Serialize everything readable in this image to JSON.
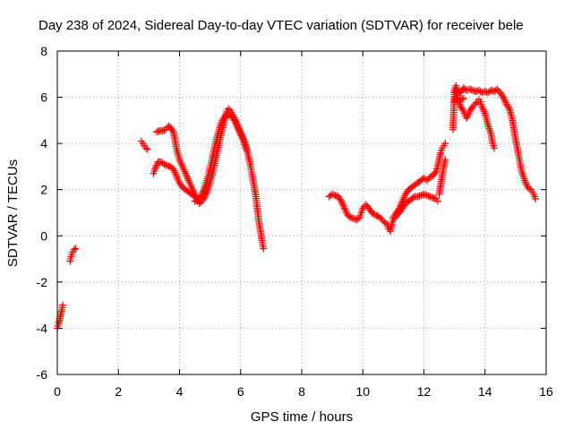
{
  "chart_data": {
    "type": "scatter",
    "title": "Day 238 of 2024, Sidereal Day-to-day VTEC variation (SDTVAR) for receiver bele",
    "xlabel": "GPS time / hours",
    "ylabel": "SDTVAR / TECUs",
    "xlim": [
      0,
      16
    ],
    "ylim": [
      -6,
      8
    ],
    "xticks": [
      0,
      2,
      4,
      6,
      8,
      10,
      12,
      14,
      16
    ],
    "yticks": [
      -6,
      -4,
      -2,
      0,
      2,
      4,
      6,
      8
    ],
    "grid": true,
    "marker": "+",
    "color": "#ff0000",
    "series": [
      {
        "name": "SDTVAR",
        "segments": [
          [
            [
              0.0,
              -4.0
            ],
            [
              0.05,
              -3.8
            ],
            [
              0.1,
              -3.5
            ],
            [
              0.15,
              -3.2
            ],
            [
              0.18,
              -3.0
            ]
          ],
          [
            [
              0.42,
              -1.1
            ],
            [
              0.45,
              -0.9
            ],
            [
              0.5,
              -0.7
            ],
            [
              0.55,
              -0.6
            ],
            [
              0.6,
              -0.55
            ]
          ],
          [
            [
              2.75,
              4.1
            ],
            [
              2.8,
              4.0
            ],
            [
              2.85,
              3.9
            ],
            [
              2.9,
              3.8
            ],
            [
              2.95,
              3.75
            ]
          ],
          [
            [
              3.15,
              2.7
            ],
            [
              3.2,
              2.9
            ],
            [
              3.3,
              3.2
            ],
            [
              3.4,
              3.2
            ],
            [
              3.5,
              3.1
            ],
            [
              3.6,
              3.05
            ],
            [
              3.7,
              3.0
            ],
            [
              3.8,
              2.9
            ],
            [
              3.9,
              2.6
            ],
            [
              4.0,
              2.3
            ],
            [
              4.1,
              2.1
            ],
            [
              4.2,
              2.0
            ],
            [
              4.3,
              1.9
            ],
            [
              4.4,
              1.8
            ],
            [
              4.5,
              1.7
            ],
            [
              4.6,
              1.6
            ],
            [
              4.7,
              1.6
            ]
          ],
          [
            [
              3.25,
              4.5
            ],
            [
              3.35,
              4.55
            ],
            [
              3.45,
              4.55
            ],
            [
              3.55,
              4.6
            ],
            [
              3.6,
              4.7
            ],
            [
              3.65,
              4.75
            ],
            [
              3.7,
              4.7
            ],
            [
              3.8,
              4.5
            ],
            [
              3.85,
              4.2
            ],
            [
              3.9,
              3.8
            ],
            [
              4.0,
              3.3
            ],
            [
              4.1,
              3.0
            ],
            [
              4.2,
              2.7
            ],
            [
              4.3,
              2.4
            ],
            [
              4.4,
              2.1
            ],
            [
              4.5,
              1.8
            ],
            [
              4.6,
              1.5
            ],
            [
              4.65,
              1.4
            ],
            [
              4.7,
              1.45
            ],
            [
              4.8,
              1.6
            ],
            [
              4.9,
              1.9
            ],
            [
              5.0,
              2.3
            ],
            [
              5.1,
              2.8
            ],
            [
              5.2,
              3.4
            ],
            [
              5.3,
              4.0
            ],
            [
              5.4,
              4.6
            ],
            [
              5.5,
              5.1
            ],
            [
              5.55,
              5.4
            ],
            [
              5.6,
              5.5
            ],
            [
              5.65,
              5.45
            ],
            [
              5.7,
              5.35
            ],
            [
              5.8,
              5.1
            ],
            [
              5.9,
              4.8
            ],
            [
              6.0,
              4.5
            ],
            [
              6.1,
              4.2
            ],
            [
              6.2,
              3.8
            ],
            [
              6.3,
              3.2
            ],
            [
              6.4,
              2.5
            ],
            [
              6.5,
              1.7
            ],
            [
              6.6,
              0.6
            ],
            [
              6.7,
              -0.2
            ],
            [
              6.75,
              -0.55
            ]
          ],
          [
            [
              4.5,
              1.5
            ],
            [
              4.6,
              1.55
            ],
            [
              4.7,
              1.7
            ],
            [
              4.8,
              2.0
            ],
            [
              4.9,
              2.4
            ],
            [
              5.0,
              2.9
            ],
            [
              5.1,
              3.5
            ],
            [
              5.2,
              4.1
            ],
            [
              5.3,
              4.6
            ],
            [
              5.4,
              5.0
            ],
            [
              5.5,
              5.2
            ],
            [
              5.6,
              5.25
            ],
            [
              5.7,
              5.2
            ],
            [
              5.8,
              5.0
            ],
            [
              5.9,
              4.7
            ],
            [
              6.0,
              4.4
            ],
            [
              6.1,
              4.1
            ],
            [
              6.2,
              3.7
            ]
          ],
          [
            [
              8.9,
              1.7
            ],
            [
              9.0,
              1.8
            ],
            [
              9.1,
              1.75
            ],
            [
              9.2,
              1.7
            ],
            [
              9.3,
              1.5
            ],
            [
              9.4,
              1.2
            ],
            [
              9.5,
              0.9
            ],
            [
              9.6,
              0.8
            ],
            [
              9.7,
              0.75
            ],
            [
              9.8,
              0.7
            ],
            [
              9.9,
              0.8
            ],
            [
              9.95,
              1.0
            ],
            [
              10.0,
              1.2
            ],
            [
              10.1,
              1.35
            ],
            [
              10.2,
              1.2
            ],
            [
              10.3,
              1.0
            ],
            [
              10.4,
              0.9
            ],
            [
              10.5,
              0.85
            ],
            [
              10.6,
              0.75
            ],
            [
              10.7,
              0.6
            ],
            [
              10.8,
              0.5
            ],
            [
              10.85,
              0.3
            ],
            [
              10.9,
              0.2
            ],
            [
              10.95,
              0.5
            ],
            [
              11.0,
              0.7
            ],
            [
              11.1,
              0.85
            ],
            [
              11.2,
              1.0
            ],
            [
              11.3,
              1.2
            ],
            [
              11.4,
              1.4
            ],
            [
              11.5,
              1.5
            ],
            [
              11.6,
              1.6
            ],
            [
              11.7,
              1.7
            ],
            [
              11.8,
              1.7
            ],
            [
              11.9,
              1.75
            ],
            [
              12.0,
              1.8
            ],
            [
              12.1,
              1.75
            ],
            [
              12.2,
              1.7
            ],
            [
              12.3,
              1.65
            ],
            [
              12.4,
              1.6
            ],
            [
              12.45,
              1.5
            ]
          ],
          [
            [
              11.0,
              0.8
            ],
            [
              11.1,
              1.0
            ],
            [
              11.2,
              1.2
            ],
            [
              11.3,
              1.5
            ],
            [
              11.4,
              1.8
            ],
            [
              11.5,
              2.0
            ],
            [
              11.6,
              2.1
            ],
            [
              11.7,
              2.2
            ],
            [
              11.8,
              2.3
            ],
            [
              11.9,
              2.4
            ],
            [
              12.0,
              2.5
            ],
            [
              12.1,
              2.4
            ],
            [
              12.2,
              2.55
            ],
            [
              12.3,
              2.6
            ],
            [
              12.4,
              2.8
            ],
            [
              12.45,
              3.0
            ],
            [
              12.5,
              3.3
            ],
            [
              12.55,
              3.6
            ],
            [
              12.6,
              3.8
            ],
            [
              12.65,
              3.9
            ],
            [
              12.7,
              4.0
            ]
          ],
          [
            [
              12.5,
              1.8
            ],
            [
              12.55,
              2.2
            ],
            [
              12.6,
              2.6
            ],
            [
              12.65,
              3.0
            ],
            [
              12.7,
              3.3
            ]
          ],
          [
            [
              12.95,
              4.6
            ],
            [
              12.98,
              5.5
            ],
            [
              13.0,
              6.3
            ],
            [
              13.05,
              6.5
            ],
            [
              13.1,
              6.0
            ],
            [
              13.2,
              5.6
            ],
            [
              13.3,
              5.4
            ],
            [
              13.35,
              5.2
            ],
            [
              13.4,
              5.1
            ],
            [
              13.5,
              5.4
            ],
            [
              13.6,
              5.6
            ],
            [
              13.7,
              5.75
            ],
            [
              13.75,
              5.8
            ],
            [
              13.8,
              5.9
            ],
            [
              13.85,
              5.8
            ],
            [
              13.9,
              5.6
            ],
            [
              14.0,
              5.3
            ],
            [
              14.1,
              4.8
            ],
            [
              14.2,
              4.4
            ],
            [
              14.25,
              4.0
            ],
            [
              14.3,
              3.8
            ]
          ],
          [
            [
              13.0,
              6.2
            ],
            [
              13.1,
              6.3
            ],
            [
              13.2,
              6.2
            ],
            [
              13.3,
              6.4
            ],
            [
              13.4,
              6.3
            ],
            [
              13.5,
              6.35
            ],
            [
              13.6,
              6.3
            ],
            [
              13.7,
              6.25
            ],
            [
              13.8,
              6.3
            ],
            [
              13.9,
              6.2
            ],
            [
              14.0,
              6.25
            ],
            [
              14.1,
              6.2
            ],
            [
              14.2,
              6.3
            ],
            [
              14.3,
              6.25
            ],
            [
              14.4,
              6.35
            ],
            [
              14.5,
              6.2
            ],
            [
              14.6,
              6.0
            ],
            [
              14.7,
              5.7
            ],
            [
              14.8,
              5.5
            ],
            [
              14.9,
              5.0
            ],
            [
              15.0,
              4.2
            ],
            [
              15.1,
              3.5
            ],
            [
              15.2,
              2.8
            ],
            [
              15.3,
              2.4
            ],
            [
              15.4,
              2.1
            ],
            [
              15.5,
              2.0
            ],
            [
              15.55,
              1.9
            ],
            [
              15.6,
              1.8
            ],
            [
              15.65,
              1.6
            ]
          ],
          [
            [
              13.0,
              5.8
            ],
            [
              13.05,
              6.0
            ],
            [
              13.1,
              5.8
            ],
            [
              13.2,
              5.9
            ],
            [
              13.3,
              5.95
            ]
          ]
        ]
      }
    ]
  }
}
